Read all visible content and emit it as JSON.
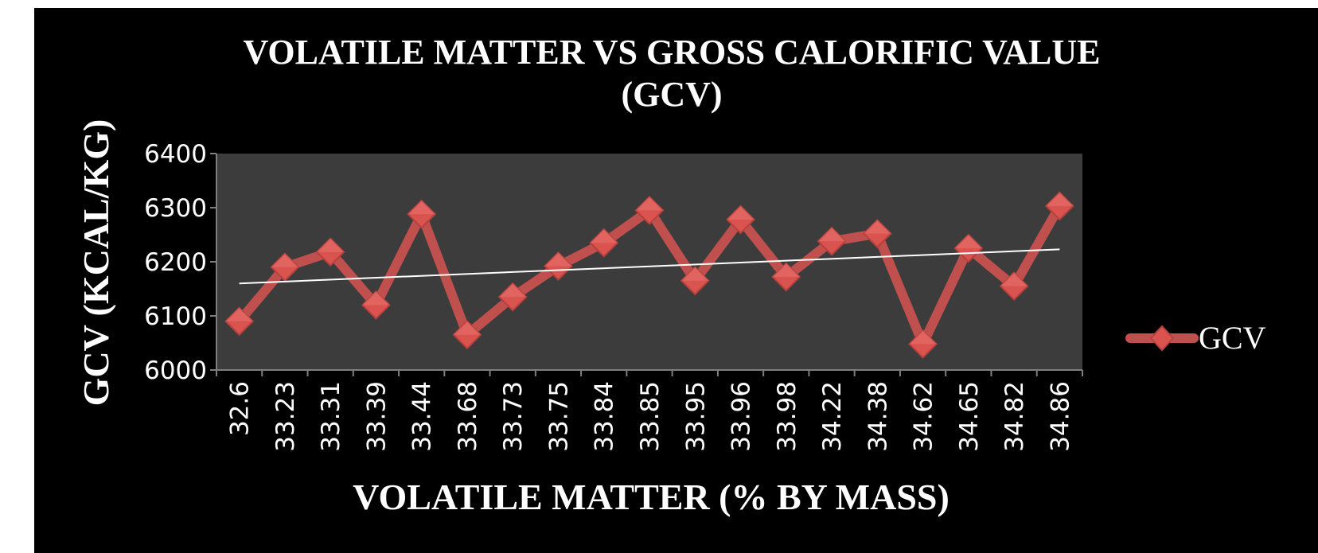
{
  "colors": {
    "background": "#000000",
    "plot_area": "#3c3c3c",
    "series": "#c0504d",
    "marker": "#d9534f",
    "trendline": "#ffffff",
    "axis": "#7f7f7f",
    "text": "#ffffff"
  },
  "chart_data": {
    "type": "line",
    "title": "VOLATILE MATTER VS  GROSS CALORIFIC VALUE (GCV)",
    "title_lines": [
      "VOLATILE MATTER VS  GROSS CALORIFIC VALUE",
      "(GCV)"
    ],
    "xlabel": "VOLATILE MATTER (% BY MASS)",
    "ylabel": "GCV (KCAL/KG)",
    "categories": [
      "32.6",
      "33.23",
      "33.31",
      "33.39",
      "33.44",
      "33.68",
      "33.73",
      "33.75",
      "33.84",
      "33.85",
      "33.95",
      "33.96",
      "33.98",
      "34.22",
      "34.38",
      "34.62",
      "34.65",
      "34.82",
      "34.86"
    ],
    "series": [
      {
        "name": "GCV",
        "values": [
          6090,
          6190,
          6218,
          6120,
          6288,
          6065,
          6135,
          6192,
          6235,
          6295,
          6165,
          6278,
          6172,
          6238,
          6252,
          6048,
          6225,
          6155,
          6303
        ],
        "marker": "diamond"
      }
    ],
    "trendline": {
      "type": "linear",
      "start": 6160,
      "end": 6223
    },
    "ylim": [
      6000,
      6400
    ],
    "yticks": [
      "6000",
      "6100",
      "6200",
      "6300",
      "6400"
    ],
    "grid": false,
    "legend": {
      "position": "right"
    }
  }
}
